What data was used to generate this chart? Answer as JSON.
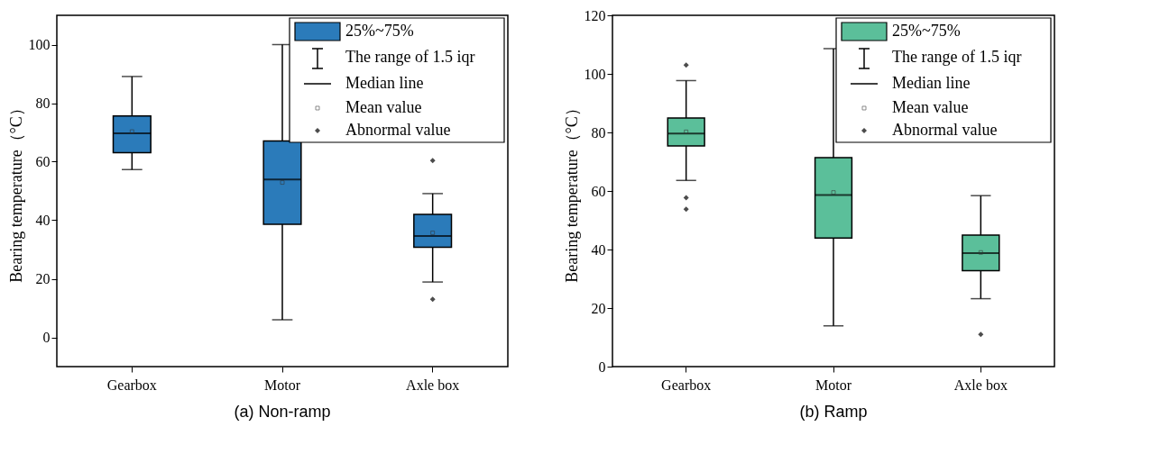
{
  "chart_data": [
    {
      "type": "box",
      "title": "(a) Non-ramp",
      "ylabel": "Bearing temperature（°C）",
      "categories": [
        "Gearbox",
        "Motor",
        "Axle box"
      ],
      "ylim": [
        -10,
        110
      ],
      "yticks": [
        0,
        20,
        40,
        60,
        80,
        100
      ],
      "grid": false,
      "legend": "top right",
      "annotations": [
        "The range of 1.5 iqr",
        "Median line",
        "Mean value",
        "Abnormal value"
      ],
      "series": [
        {
          "name": "25%~75%",
          "color": "#2b7bba",
          "boxes": [
            {
              "low": 57.3,
              "q1": 63.1,
              "median": 69.7,
              "q3": 75.6,
              "high": 89.1,
              "mean": 70.3
            },
            {
              "low": 6,
              "q1": 38.6,
              "median": 53.9,
              "q3": 67.1,
              "high": 100,
              "mean": 52.9
            },
            {
              "low": 18.9,
              "q1": 30.8,
              "median": 34.6,
              "q3": 42,
              "high": 49.1,
              "mean": 35.7,
              "outliers": [
                60.4,
                13
              ]
            }
          ]
        }
      ]
    },
    {
      "type": "box",
      "title": "(b) Ramp",
      "ylabel": "Bearing temperature（°C）",
      "categories": [
        "Gearbox",
        "Motor",
        "Axle box"
      ],
      "ylim": [
        0,
        120
      ],
      "yticks": [
        0,
        20,
        40,
        60,
        80,
        100,
        120
      ],
      "grid": false,
      "legend": "top right",
      "annotations": [
        "The range of 1.5 iqr",
        "Median line",
        "Mean value",
        "Abnormal value"
      ],
      "series": [
        {
          "name": "25%~75%",
          "color": "#5bbf9a",
          "boxes": [
            {
              "low": 63.6,
              "q1": 75.4,
              "median": 79.6,
              "q3": 84.9,
              "high": 97.7,
              "mean": 80.2,
              "outliers": [
                103,
                57.7,
                53.8
              ]
            },
            {
              "low": 13.9,
              "q1": 43.9,
              "median": 58.6,
              "q3": 71.4,
              "high": 108.6,
              "mean": 59.5
            },
            {
              "low": 23.2,
              "q1": 32.8,
              "median": 38.8,
              "q3": 44.9,
              "high": 58.4,
              "mean": 39,
              "outliers": [
                11
              ]
            }
          ]
        }
      ]
    }
  ]
}
